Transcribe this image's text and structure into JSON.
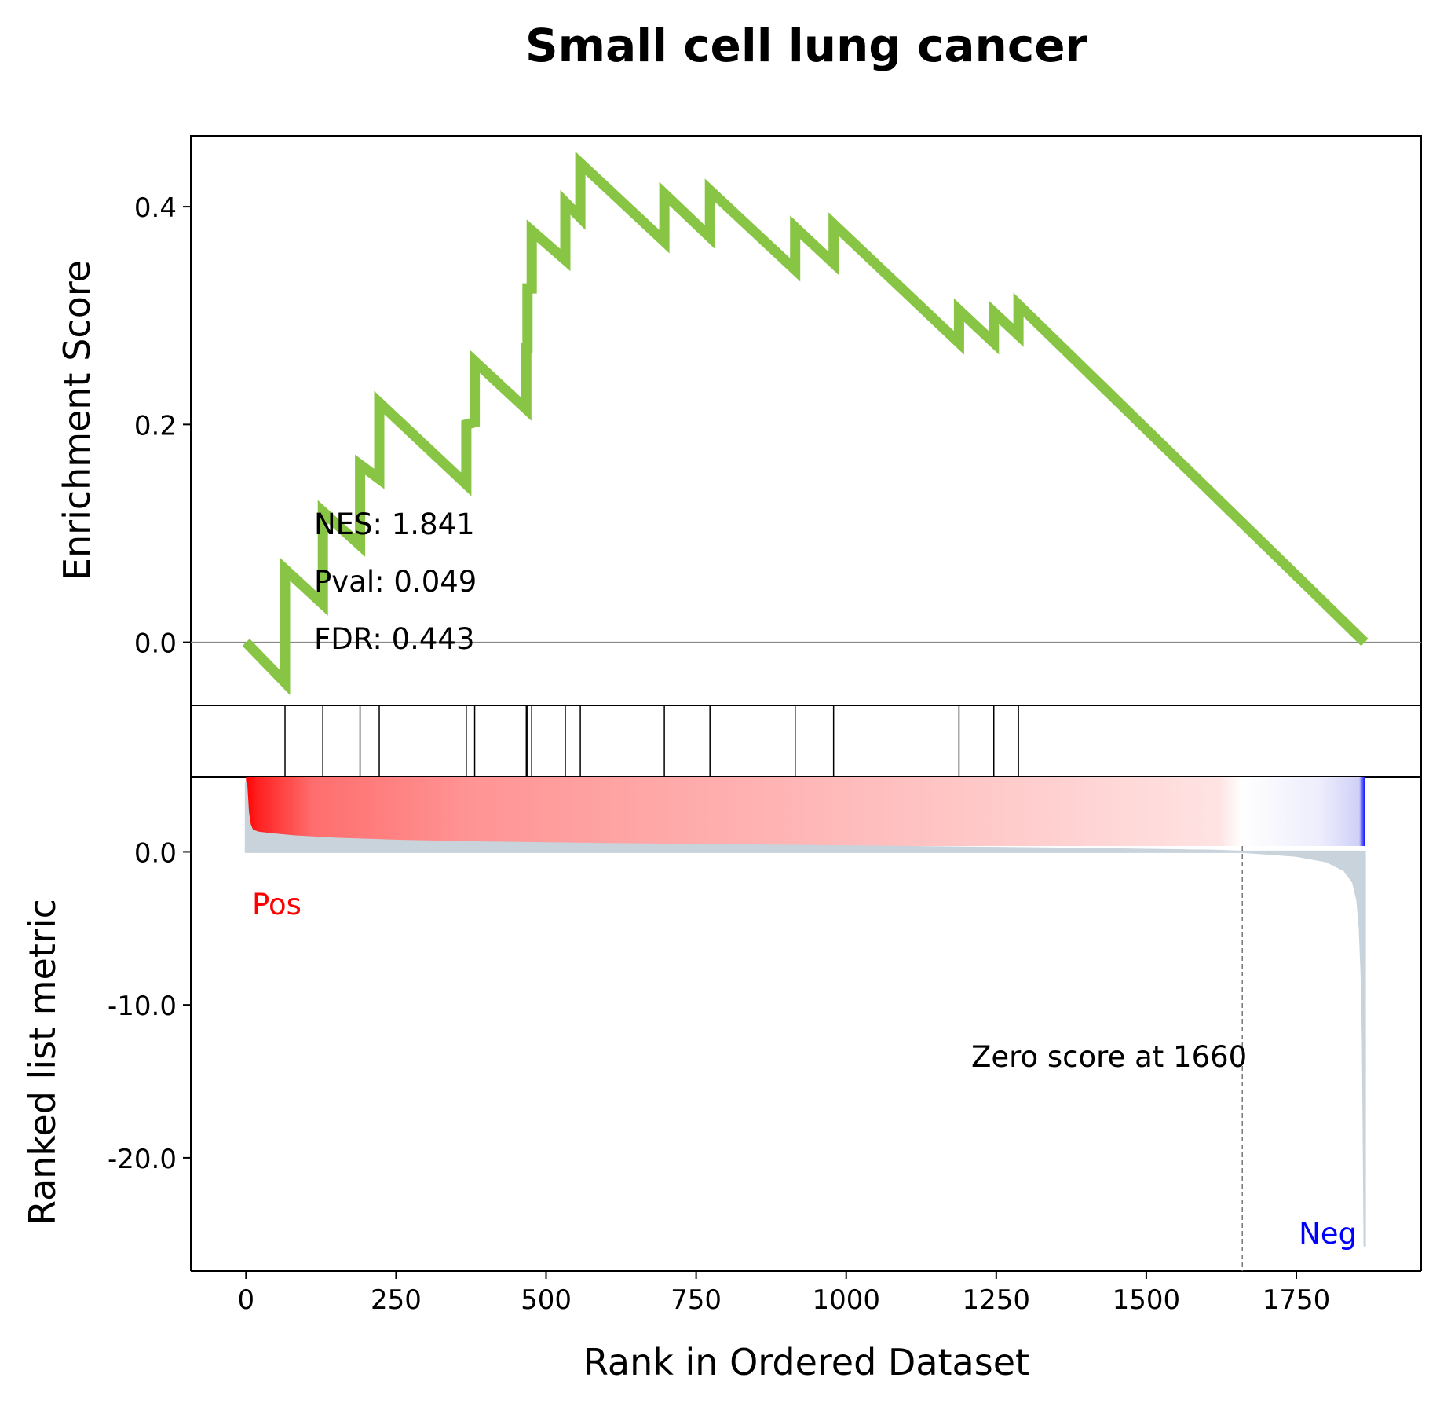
{
  "chart_data": {
    "type": "line",
    "title": "Small cell lung cancer",
    "xlabel": "Rank in Ordered Dataset",
    "xlim": [
      -92,
      1958
    ],
    "xticks": [
      0,
      250,
      500,
      750,
      1000,
      1250,
      1500,
      1750
    ],
    "xtick_labels": [
      "0",
      "250",
      "500",
      "750",
      "1000",
      "1250",
      "1500",
      "1750"
    ],
    "n_genes": 1864,
    "enrichment": {
      "ylabel": "Enrichment Score",
      "ylim": [
        -0.058,
        0.465
      ],
      "yticks": [
        0.0,
        0.2,
        0.4
      ],
      "ytick_labels": [
        "0.0",
        "0.2",
        "0.4"
      ],
      "color": "#88C544",
      "x": [
        0,
        65,
        65,
        128,
        128,
        190,
        190,
        222,
        222,
        367,
        367,
        381,
        381,
        467,
        467,
        469,
        469,
        476,
        476,
        532,
        532,
        557,
        557,
        697,
        697,
        773,
        773,
        915,
        915,
        979,
        979,
        1188,
        1188,
        1246,
        1246,
        1287,
        1287,
        1864
      ],
      "y": [
        0.0,
        -0.037,
        0.067,
        0.035,
        0.12,
        0.089,
        0.163,
        0.15,
        0.22,
        0.145,
        0.2,
        0.202,
        0.258,
        0.214,
        0.27,
        0.27,
        0.325,
        0.325,
        0.378,
        0.351,
        0.404,
        0.39,
        0.44,
        0.368,
        0.412,
        0.372,
        0.415,
        0.342,
        0.381,
        0.348,
        0.384,
        0.275,
        0.305,
        0.275,
        0.303,
        0.282,
        0.31,
        0.0
      ],
      "stats": [
        "NES: 1.841",
        "Pval: 0.049",
        "FDR: 0.443"
      ]
    },
    "hits": [
      65,
      128,
      190,
      222,
      367,
      381,
      467,
      469,
      476,
      532,
      557,
      697,
      773,
      915,
      979,
      1188,
      1246,
      1287
    ],
    "ranked_metric": {
      "ylabel": "Ranked list metric",
      "ylim": [
        -27.4,
        4.9
      ],
      "yticks": [
        0.0,
        -10.0,
        -20.0
      ],
      "ytick_labels": [
        "0.0",
        "-10.0",
        "-20.0"
      ],
      "fill_color": "#C9D3DB",
      "x": [
        0,
        3,
        6,
        10,
        20,
        40,
        80,
        150,
        250,
        400,
        600,
        800,
        1000,
        1200,
        1400,
        1550,
        1620,
        1650,
        1660,
        1700,
        1750,
        1800,
        1830,
        1845,
        1852,
        1856,
        1859,
        1861,
        1862,
        1863,
        1864
      ],
      "y": [
        4.6,
        2.6,
        1.8,
        1.4,
        1.25,
        1.15,
        1.0,
        0.85,
        0.72,
        0.6,
        0.5,
        0.42,
        0.35,
        0.27,
        0.18,
        0.1,
        0.05,
        0.01,
        0.0,
        -0.1,
        -0.25,
        -0.6,
        -1.2,
        -2.0,
        -3.2,
        -5.0,
        -8.0,
        -12.0,
        -16.0,
        -21.0,
        -25.8
      ],
      "zero_score_rank": 1660,
      "zero_score_label": "Zero score at 1660",
      "pos_label": "Pos",
      "neg_label": "Neg",
      "pos_color": "#FF0000",
      "neg_color": "#0000FF"
    }
  }
}
